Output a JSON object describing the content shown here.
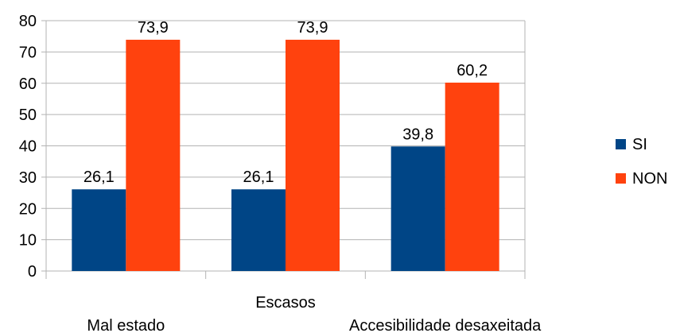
{
  "chart_data": {
    "type": "bar",
    "categories": [
      "Mal estado",
      "Escasos",
      "Accesibilidade desaxeitada"
    ],
    "series": [
      {
        "name": "SI",
        "values": [
          26.1,
          26.1,
          39.8
        ],
        "color": "#004586"
      },
      {
        "name": "NON",
        "values": [
          73.9,
          73.9,
          60.2
        ],
        "color": "#ff420e"
      }
    ],
    "data_labels": [
      [
        "26,1",
        "26,1",
        "39,8"
      ],
      [
        "73,9",
        "73,9",
        "60,2"
      ]
    ],
    "y_ticks": [
      0,
      10,
      20,
      30,
      40,
      50,
      60,
      70,
      80
    ],
    "ylim": [
      0,
      80
    ],
    "grid": true,
    "legend_position": "right",
    "title": "",
    "xlabel": "",
    "ylabel": ""
  }
}
